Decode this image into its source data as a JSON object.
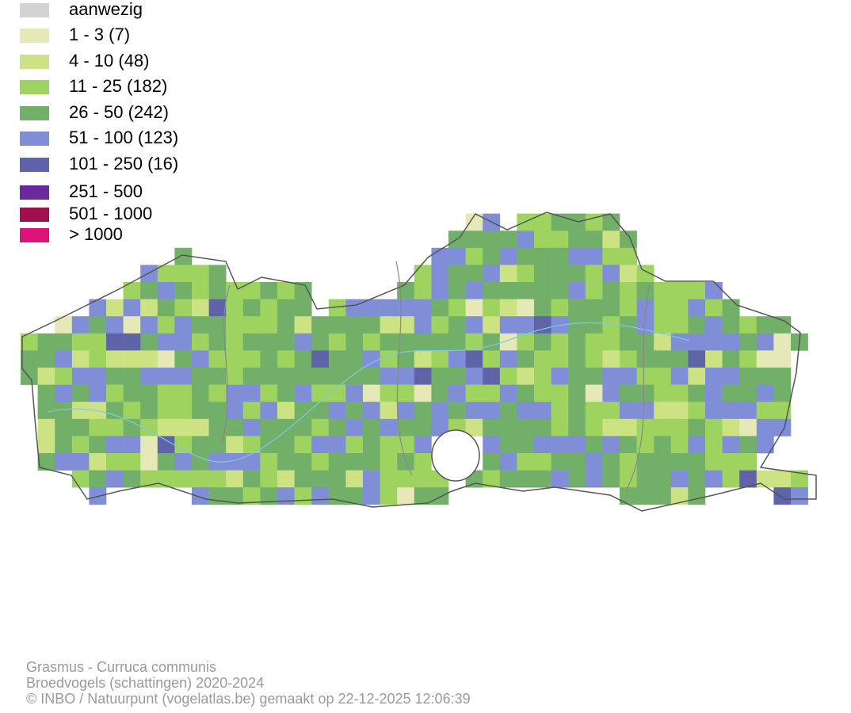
{
  "legend": {
    "items": [
      {
        "label": "aanwezig",
        "color": "#d3d3d3"
      },
      {
        "label": "1 - 3 (7)",
        "color": "#e6e8b8"
      },
      {
        "label": "4 - 10 (48)",
        "color": "#cde383"
      },
      {
        "label": "11 - 25 (182)",
        "color": "#9ed35f"
      },
      {
        "label": "26 - 50 (242)",
        "color": "#72b06a"
      },
      {
        "label": "51 - 100 (123)",
        "color": "#7f8ed6"
      },
      {
        "label": "101 - 250 (16)",
        "color": "#5f63a8"
      },
      {
        "label": "251 - 500",
        "color": "#6a2a9a"
      },
      {
        "label": "501 - 1000",
        "color": "#a0104f"
      },
      {
        "label": "> 1000",
        "color": "#e0127a"
      }
    ]
  },
  "footer": {
    "lines": [
      "Grasmus - Curruca communis",
      "Broedvogels (schattingen) 2020-2024",
      "© INBO / Natuurpunt (vogelatlas.be) gemaakt op 22-12-2025 12:06:39"
    ]
  }
}
